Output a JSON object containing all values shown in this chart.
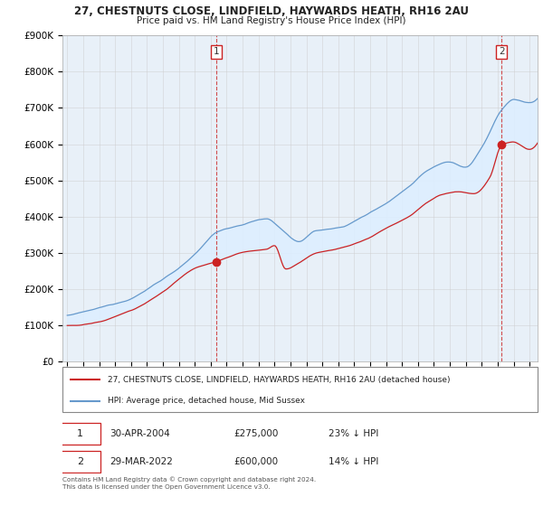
{
  "title_line1": "27, CHESTNUTS CLOSE, LINDFIELD, HAYWARDS HEATH, RH16 2AU",
  "title_line2": "Price paid vs. HM Land Registry's House Price Index (HPI)",
  "x_start_year": 1995,
  "x_end_year": 2025,
  "y_min": 0,
  "y_max": 900000,
  "y_ticks": [
    0,
    100000,
    200000,
    300000,
    400000,
    500000,
    600000,
    700000,
    800000,
    900000
  ],
  "y_tick_labels": [
    "£0",
    "£100K",
    "£200K",
    "£300K",
    "£400K",
    "£500K",
    "£600K",
    "£700K",
    "£800K",
    "£900K"
  ],
  "hpi_color": "#6699cc",
  "price_color": "#cc2222",
  "fill_color": "#ddeeff",
  "purchase1_date": 2004.33,
  "purchase1_price": 275000,
  "purchase2_date": 2022.25,
  "purchase2_price": 600000,
  "legend_property": "27, CHESTNUTS CLOSE, LINDFIELD, HAYWARDS HEATH, RH16 2AU (detached house)",
  "legend_hpi": "HPI: Average price, detached house, Mid Sussex",
  "footnote": "Contains HM Land Registry data © Crown copyright and database right 2024.\nThis data is licensed under the Open Government Licence v3.0.",
  "background_color": "#ffffff",
  "plot_bg_color": "#e8f0f8",
  "grid_color": "#cccccc"
}
